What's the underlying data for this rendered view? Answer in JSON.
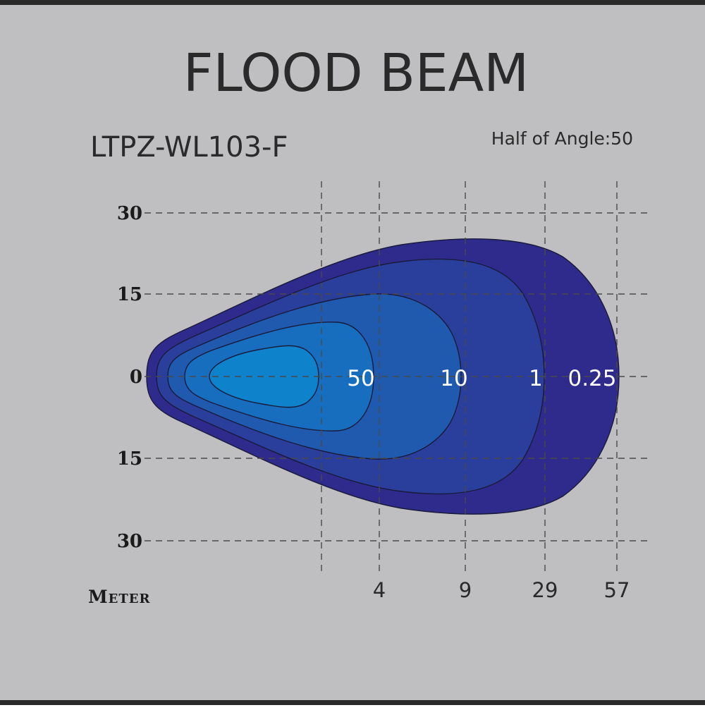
{
  "chart_data": {
    "type": "heatmap",
    "title": "FLOOD  BEAM",
    "subtitle": "LTPZ-WL103-F",
    "annotation": "Half of Angle:50",
    "xlabel": "Meter",
    "ylabel": "",
    "y_ticks": [
      "30",
      "15",
      "0",
      "15",
      "30"
    ],
    "x_ticks": [
      "4",
      "9",
      "29",
      "57"
    ],
    "ylim": [
      -30,
      30
    ],
    "grid": true,
    "contours": [
      {
        "label": "0.25",
        "distance_m": 57,
        "half_width": 25,
        "color": "#2e2b8c"
      },
      {
        "label": "1",
        "distance_m": 29,
        "half_width": 21,
        "color": "#2a3f9c"
      },
      {
        "label": "10",
        "distance_m": 9,
        "half_width": 15,
        "color": "#1f5aae"
      },
      {
        "label": "50",
        "distance_m": 4,
        "half_width": 10,
        "color": "#176ebe"
      },
      {
        "label": "",
        "distance_m": 0,
        "half_width": 5.5,
        "color": "#0f82cc"
      }
    ]
  }
}
